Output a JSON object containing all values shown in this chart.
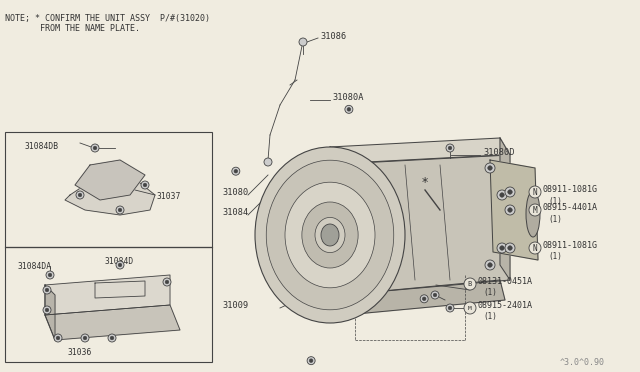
{
  "bg_color": "#f0ece0",
  "line_color": "#444444",
  "text_color": "#333333",
  "note_line1": "NOTE; * CONFIRM THE UNIT ASSY  P/#(31020)",
  "note_line2": "       FROM THE NAME PLATE.",
  "watermark": "^3.0^0.90"
}
